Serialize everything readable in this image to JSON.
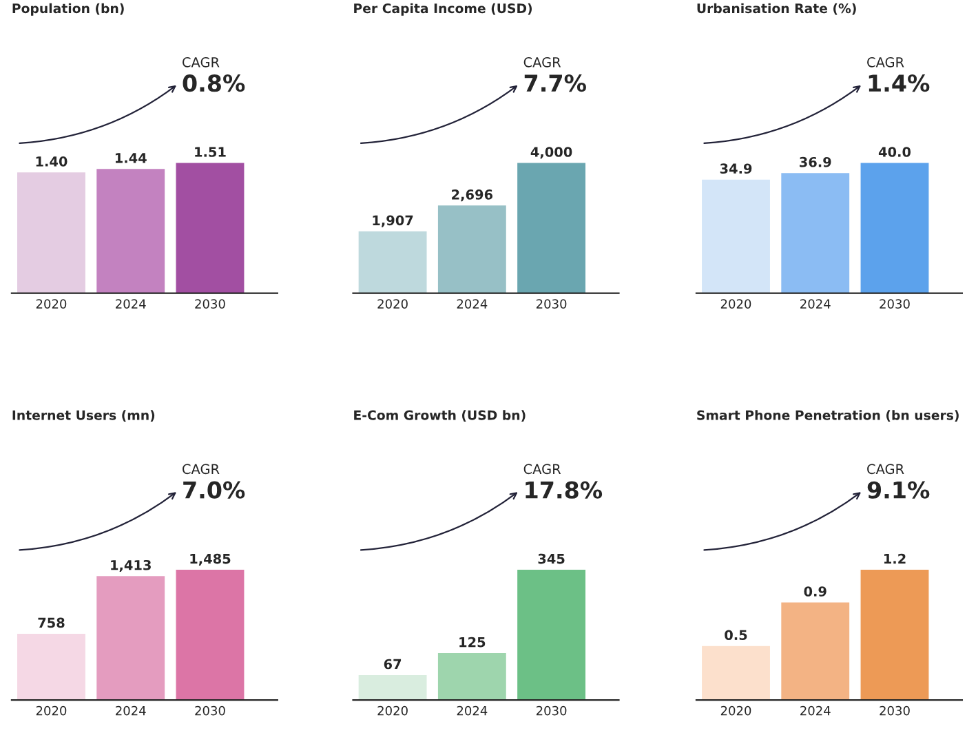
{
  "chart_data": [
    {
      "type": "bar",
      "title": "Population (bn)",
      "categories": [
        "2020",
        "2024",
        "2030"
      ],
      "values": [
        1.4,
        1.44,
        1.51
      ],
      "colors": [
        "#e4cce2",
        "#c382c0",
        "#a24fa2"
      ],
      "data_labels": true,
      "value_labels": [
        "1.40",
        "1.44",
        "1.51"
      ],
      "tick_labels": "x",
      "annotations": [
        "CAGR",
        "0.8%"
      ]
    },
    {
      "type": "bar",
      "title": "Per Capita Income (USD)",
      "categories": [
        "2020",
        "2024",
        "2030"
      ],
      "values": [
        1907,
        2696,
        4000
      ],
      "colors": [
        "#bed9dd",
        "#97c0c6",
        "#6aa6b0"
      ],
      "data_labels": true,
      "value_labels": [
        "1,907",
        "2,696",
        "4,000"
      ],
      "tick_labels": "x",
      "annotations": [
        "CAGR",
        "7.7%"
      ]
    },
    {
      "type": "bar",
      "title": "Urbanisation Rate (%)",
      "categories": [
        "2020",
        "2024",
        "2030"
      ],
      "values": [
        34.9,
        36.9,
        40.0
      ],
      "colors": [
        "#d3e5f8",
        "#8bbcf3",
        "#5ca2ec"
      ],
      "data_labels": true,
      "value_labels": [
        "34.9",
        "36.9",
        "40.0"
      ],
      "tick_labels": "x",
      "annotations": [
        "CAGR",
        "1.4%"
      ]
    },
    {
      "type": "bar",
      "title": "Internet Users (mn)",
      "categories": [
        "2020",
        "2024",
        "2030"
      ],
      "values": [
        758,
        1413,
        1485
      ],
      "colors": [
        "#f5d8e5",
        "#e49cbf",
        "#dc75a6"
      ],
      "data_labels": true,
      "value_labels": [
        "758",
        "1,413",
        "1,485"
      ],
      "tick_labels": "x",
      "annotations": [
        "CAGR",
        "7.0%"
      ]
    },
    {
      "type": "bar",
      "title": "E-Com Growth (USD bn)",
      "categories": [
        "2020",
        "2024",
        "2030"
      ],
      "values": [
        67,
        125,
        345
      ],
      "colors": [
        "#d9eddf",
        "#9ed5ad",
        "#6cc086"
      ],
      "data_labels": true,
      "value_labels": [
        "67",
        "125",
        "345"
      ],
      "tick_labels": "x",
      "annotations": [
        "CAGR",
        "17.8%"
      ]
    },
    {
      "type": "bar",
      "title": "Smart Phone Penetration (bn users)",
      "categories": [
        "2020",
        "2024",
        "2030"
      ],
      "values": [
        0.5,
        0.9,
        1.2
      ],
      "colors": [
        "#fce0cc",
        "#f3b384",
        "#ed9a56"
      ],
      "data_labels": true,
      "value_labels": [
        "0.5",
        "0.9",
        "1.2"
      ],
      "tick_labels": "x",
      "annotations": [
        "CAGR",
        "9.1%"
      ]
    }
  ]
}
